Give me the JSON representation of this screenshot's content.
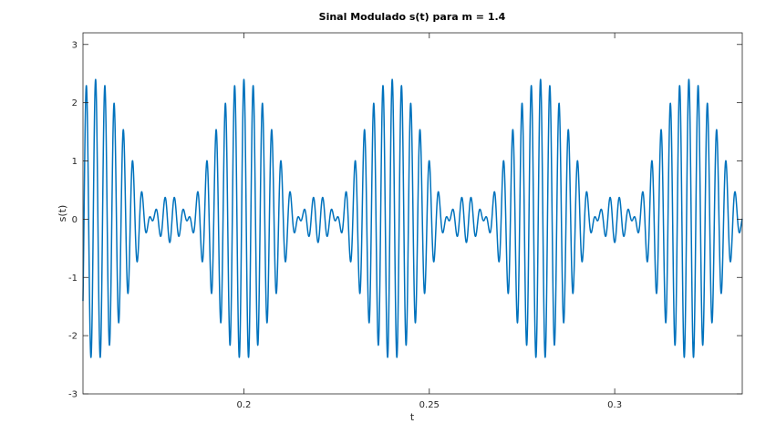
{
  "chart_data": {
    "type": "line",
    "title": "Sinal Modulado s(t) para m = 1.4",
    "xlabel": "t",
    "ylabel": "s(t)",
    "xlim": [
      0.1566,
      0.3344
    ],
    "ylim": [
      -3.0,
      3.2
    ],
    "xticks": [
      0.2,
      0.25,
      0.3
    ],
    "xtick_labels": [
      "0.2",
      "0.25",
      "0.3"
    ],
    "yticks": [
      -3,
      -2,
      -1,
      0,
      1,
      2,
      3
    ],
    "ytick_labels": [
      "-3",
      "-2",
      "-1",
      "0",
      "1",
      "2",
      "3"
    ],
    "grid": false,
    "line_color": "#0072bd",
    "series": [
      {
        "model": "s(t) = (1 + 1.4·cos(2π·25·t)) · cos(2π·400·t)",
        "m": 1.4,
        "message_frequency_hz": 25,
        "carrier_frequency_hz": 400,
        "amplitude": 1
      }
    ]
  }
}
